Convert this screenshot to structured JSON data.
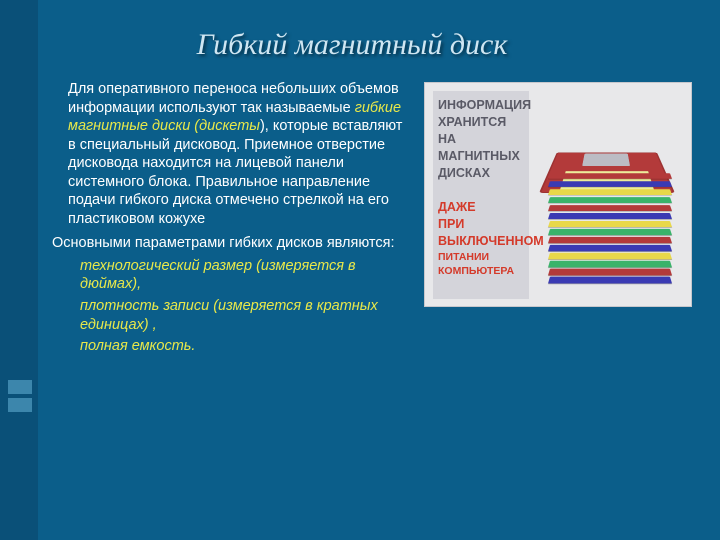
{
  "colors": {
    "slide_bg": "#0b5e8a",
    "rail_bg": "#0a5078",
    "rail_band": "#3c86ac",
    "title": "#cfe6f2",
    "body_text": "#ffffff",
    "highlight": "#e8e84a",
    "img_bg": "#e8e8ea",
    "img_panel": "#d4d4da",
    "img_text_dark": "#5a5a66",
    "img_text_red": "#d43a2a"
  },
  "title": "Гибкий магнитный диск",
  "body": {
    "p1_pre": "Для оперативного переноса небольших объемов информации используют так называемые  ",
    "p1_hl": "гибкие магнитные диски (дискеты",
    "p1_post": "), которые вставляют в специальный дисковод. Приемное отверстие дисковода находится на лицевой панели системного блока. Правильное направление подачи гибкого диска отмечено стрелкой на его пластиковом кожухе",
    "p2": "Основными параметрами гибких дисков являются:",
    "params": [
      "технологический размер (измеряется в дюймах),",
      "плотность записи (измеряется в кратных единицах) ,",
      "полная емкость."
    ]
  },
  "image_caption": {
    "line1": "ИНФОРМАЦИЯ",
    "line2": "ХРАНИТСЯ НА",
    "line3": "МАГНИТНЫХ",
    "line4": "ДИСКАХ",
    "line5": "ДАЖЕ",
    "line6": "ПРИ",
    "line7": "ВЫКЛЮЧЕННОМ",
    "line8": "ПИТАНИИ КОМПЬЮТЕРА"
  },
  "floppy_stack": {
    "top_color": "#b33a3a",
    "disks": [
      {
        "c": "#b33a3a"
      },
      {
        "c": "#3a3ab3"
      },
      {
        "c": "#e8d84a"
      },
      {
        "c": "#3ab36a"
      },
      {
        "c": "#b33a3a"
      },
      {
        "c": "#3a3ab3"
      },
      {
        "c": "#e8d84a"
      },
      {
        "c": "#3ab36a"
      },
      {
        "c": "#b33a3a"
      },
      {
        "c": "#3a3ab3"
      },
      {
        "c": "#e8d84a"
      },
      {
        "c": "#3ab36a"
      },
      {
        "c": "#b33a3a"
      },
      {
        "c": "#3a3ab3"
      }
    ]
  }
}
